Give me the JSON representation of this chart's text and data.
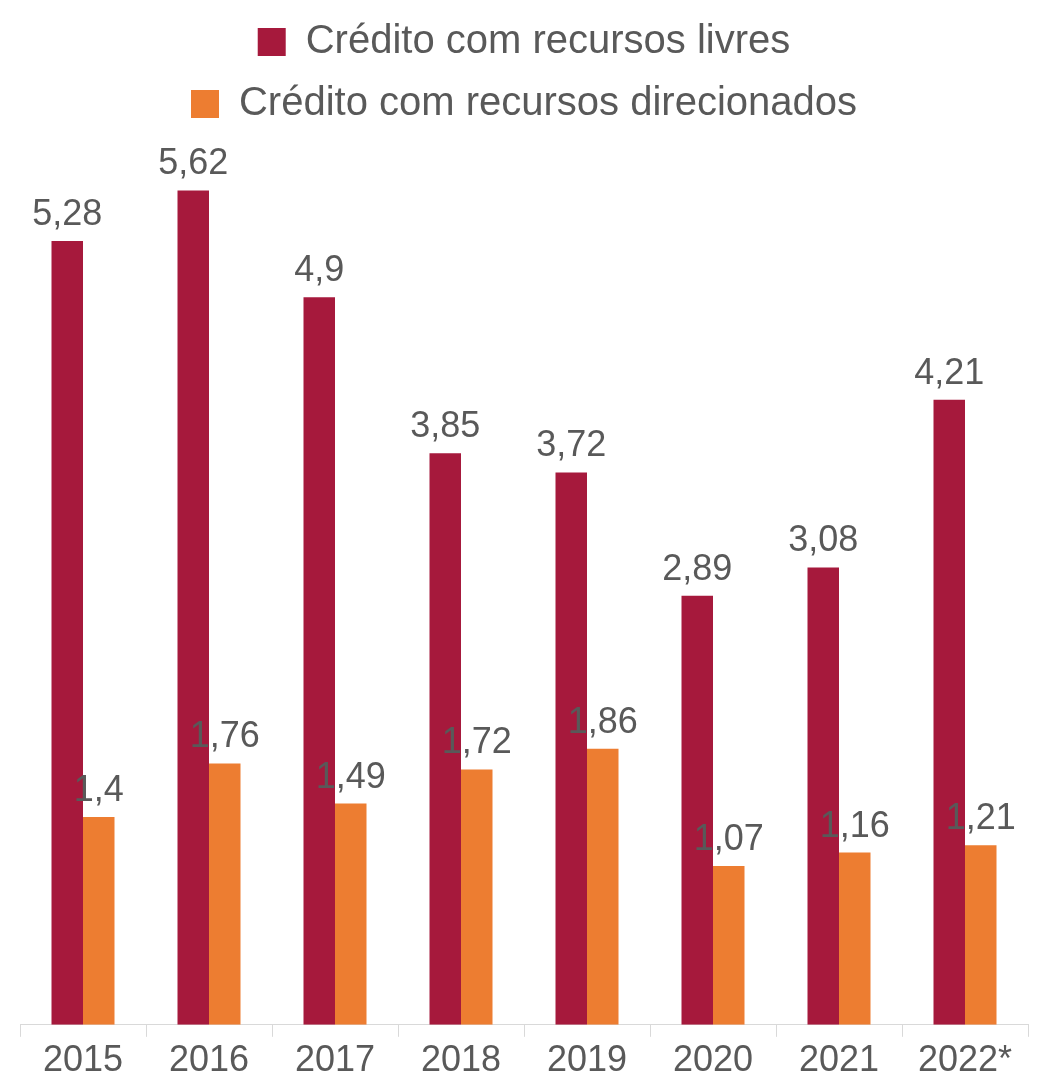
{
  "chart_data": {
    "type": "bar",
    "categories": [
      "2015",
      "2016",
      "2017",
      "2018",
      "2019",
      "2020",
      "2021",
      "2022*"
    ],
    "series": [
      {
        "name": "Crédito com recursos livres",
        "color": "#a6193c",
        "values": [
          5.28,
          5.62,
          4.9,
          3.85,
          3.72,
          2.89,
          3.08,
          4.21
        ],
        "value_labels": [
          "5,28",
          "5,62",
          "4,9",
          "3,85",
          "3,72",
          "2,89",
          "3,08",
          "4,21"
        ]
      },
      {
        "name": "Crédito com recursos direcionados",
        "color": "#ed7d31",
        "values": [
          1.4,
          1.76,
          1.49,
          1.72,
          1.86,
          1.07,
          1.16,
          1.21
        ],
        "value_labels": [
          "1,4",
          "1,76",
          "1,49",
          "1,72",
          "1,86",
          "1,07",
          "1,16",
          "1,21"
        ]
      }
    ],
    "legend": "top",
    "grid": false
  }
}
